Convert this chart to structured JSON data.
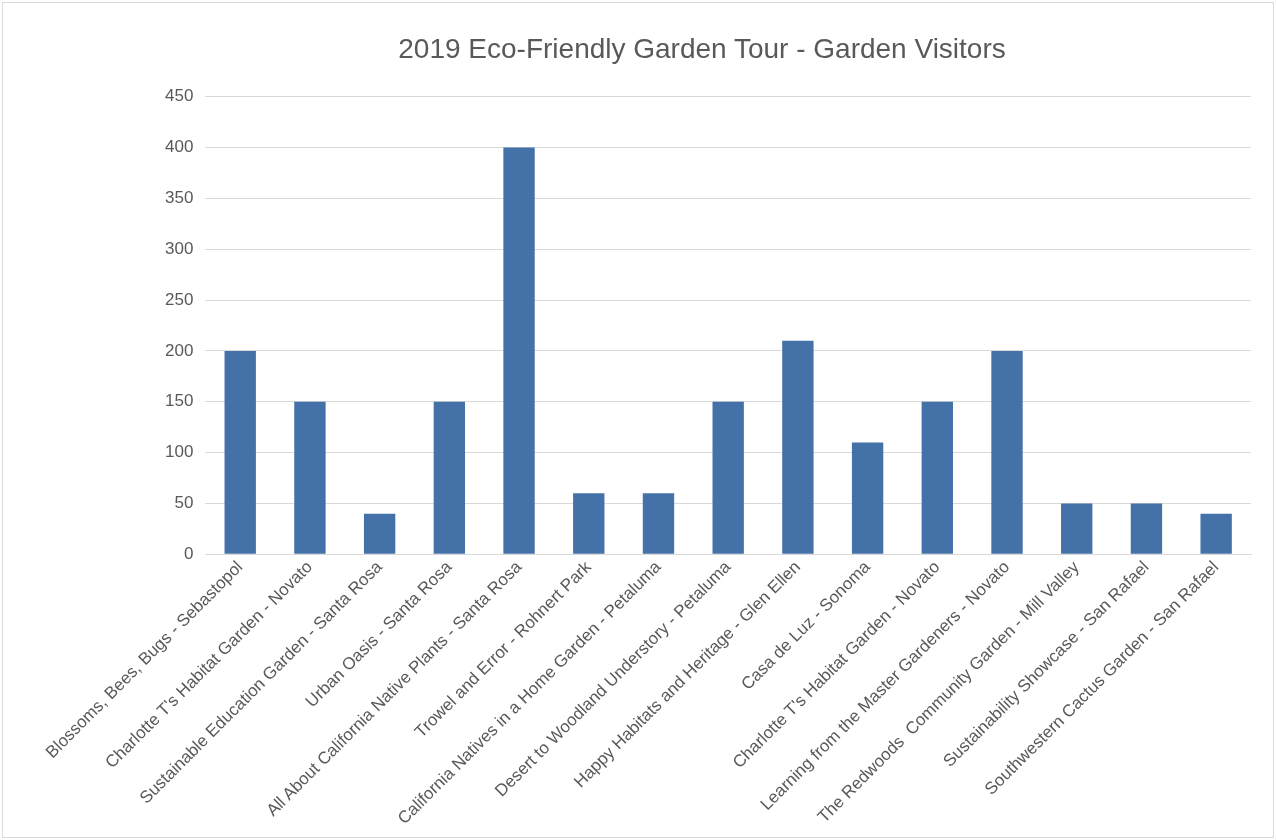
{
  "chart_data": {
    "type": "bar",
    "title": "2019 Eco-Friendly Garden Tour - Garden Visitors",
    "categories": [
      "Blossoms, Bees, Bugs - Sebastopol",
      "Charlotte T's Habitat Garden - Novato",
      "Sustainable Education Garden - Santa Rosa",
      "Urban Oasis - Santa Rosa",
      "All About California Native Plants - Santa Rosa",
      "Trowel and Error - Rohnert Park",
      "California Natives in a Home Garden - Petaluma",
      "Desert to Woodland Understory - Petaluma",
      "Happy Habitats and Heritage - Glen Ellen",
      "Casa de Luz - Sonoma",
      "Charlotte T's Habitat Garden - Novato",
      "Learning from the Master Gardeners - Novato",
      "The Redwoods  Community Garden - Mill Valley",
      "Sustainability Showcase - San Rafael",
      "Southwestern Cactus Garden - San Rafael"
    ],
    "values": [
      200,
      150,
      40,
      150,
      400,
      60,
      60,
      150,
      210,
      110,
      150,
      200,
      50,
      50,
      40
    ],
    "color": "#4472a8",
    "ylim": [
      0,
      450
    ],
    "yticks": [
      0,
      50,
      100,
      150,
      200,
      250,
      300,
      350,
      400,
      450
    ],
    "grid": "y",
    "legend": false
  }
}
